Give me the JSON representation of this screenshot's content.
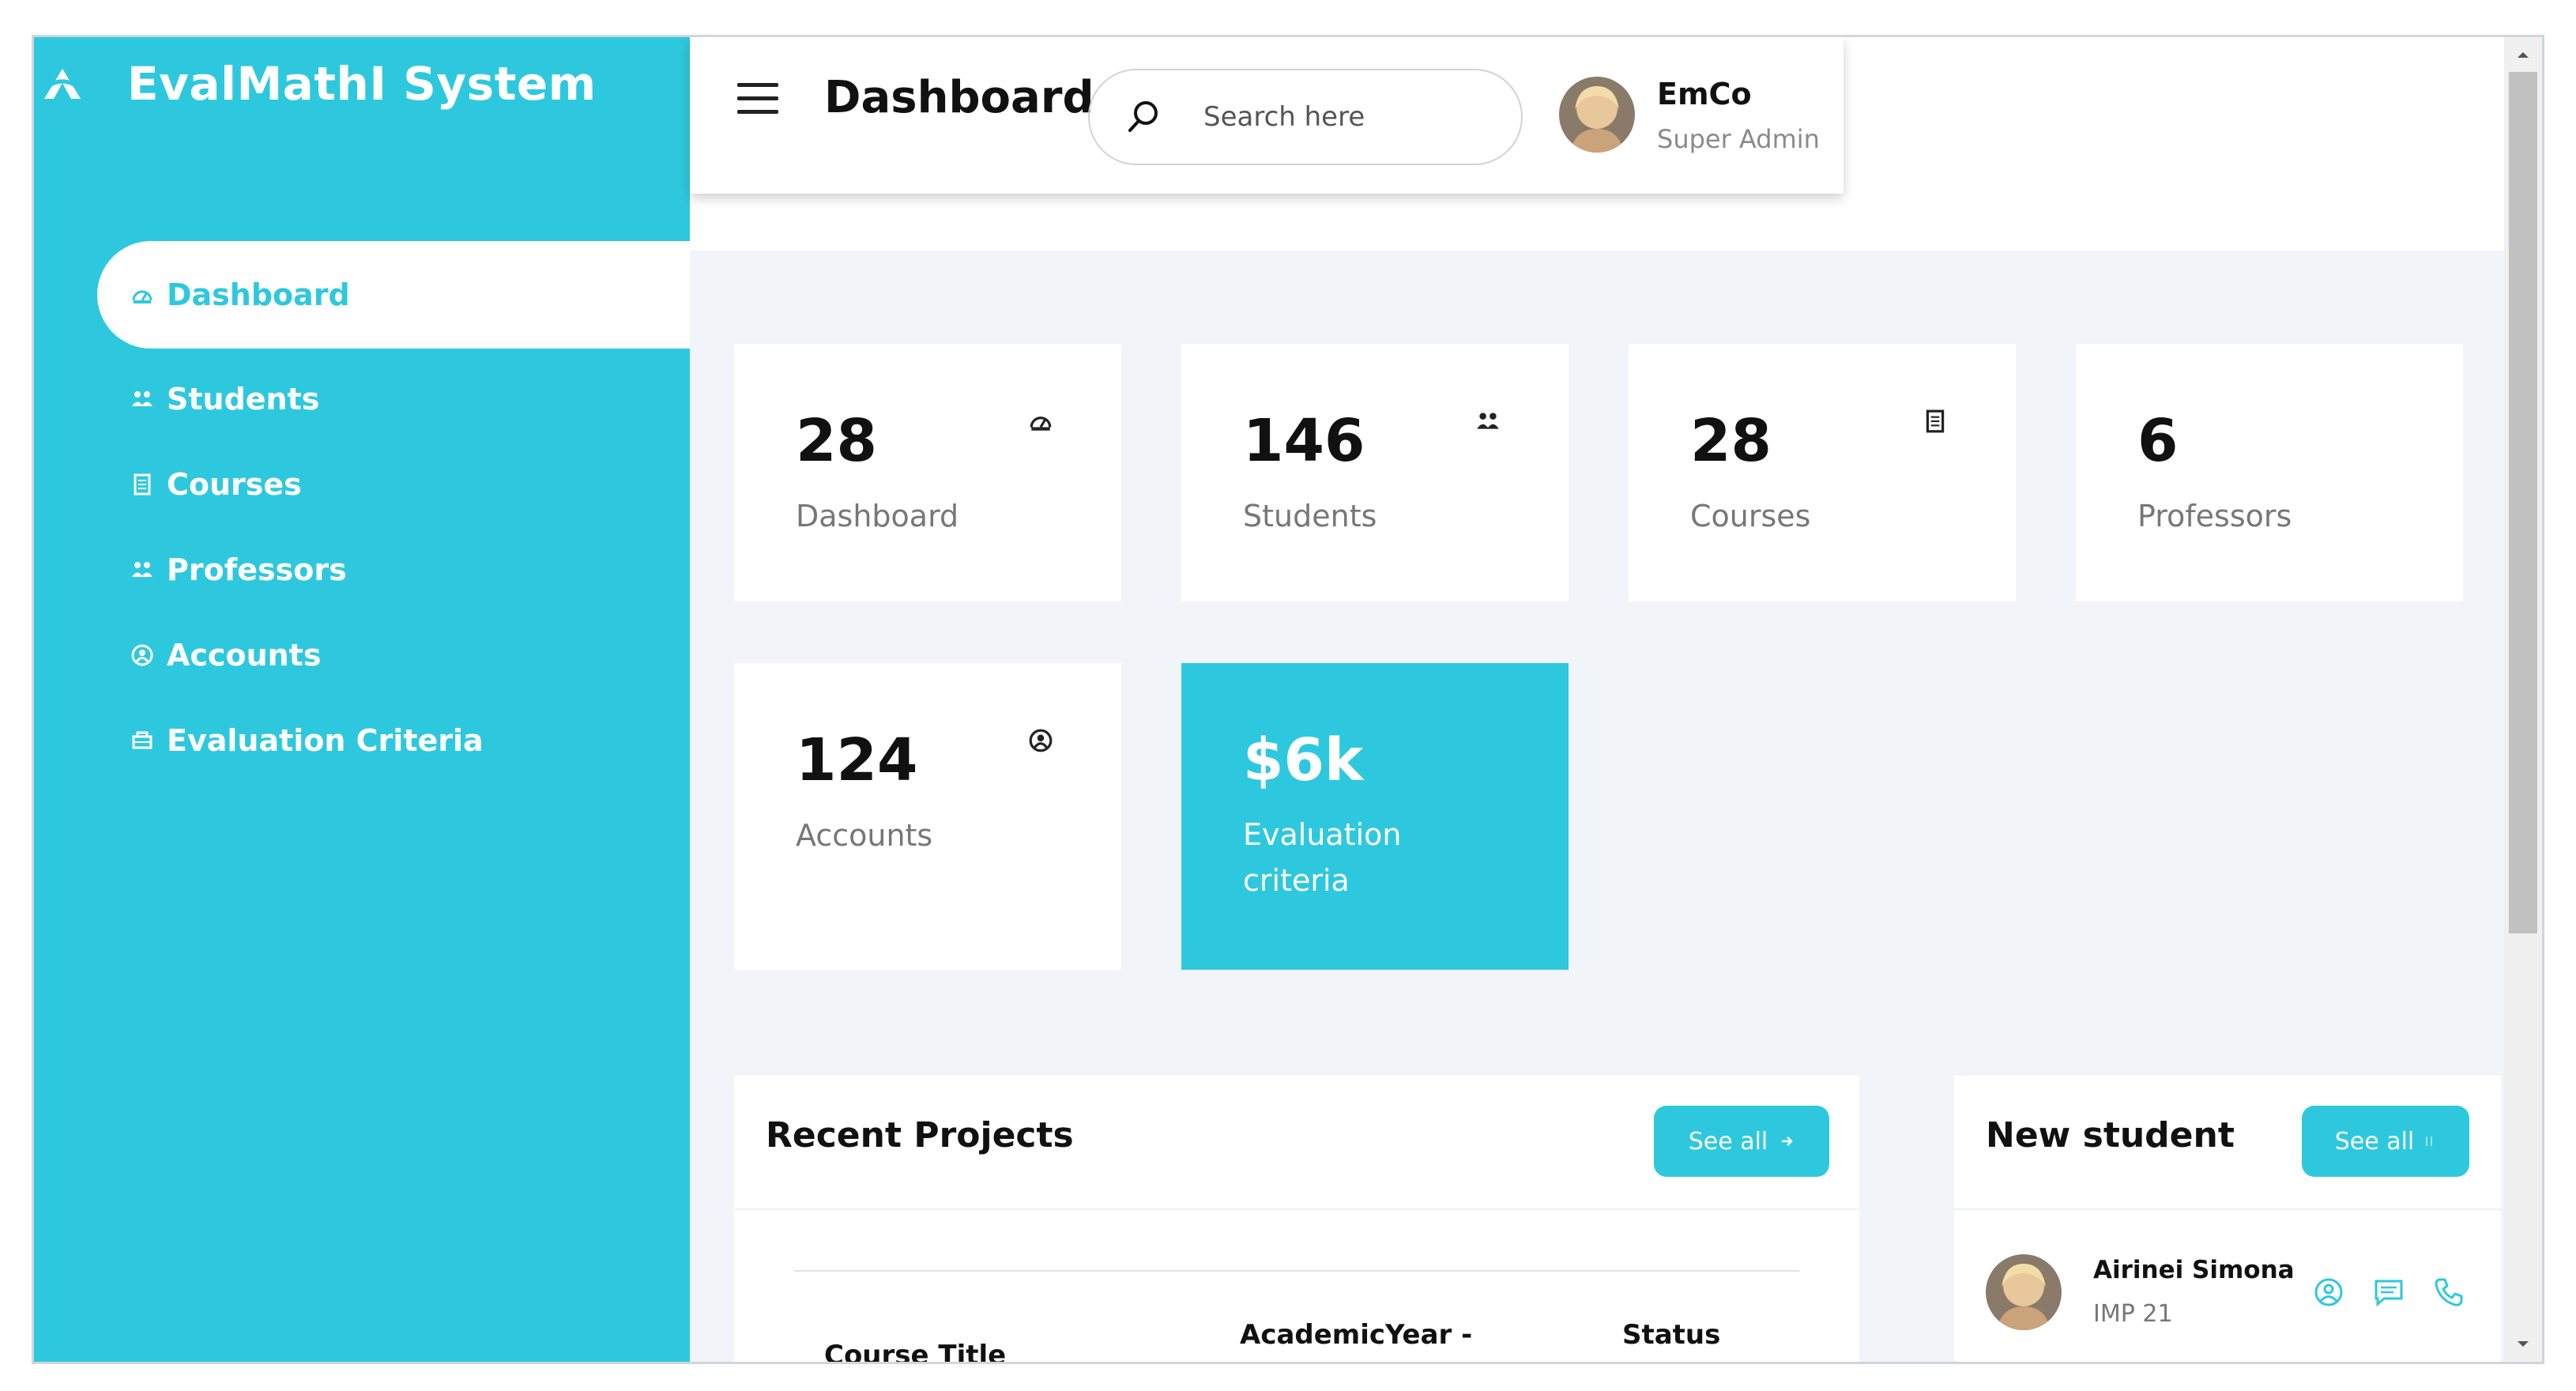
{
  "app": {
    "title": "EvalMathI System"
  },
  "sidebar": {
    "items": [
      {
        "label": "Dashboard",
        "icon": "dashboard-icon",
        "active": true
      },
      {
        "label": "Students",
        "icon": "students-icon"
      },
      {
        "label": "Courses",
        "icon": "courses-icon"
      },
      {
        "label": "Professors",
        "icon": "professors-icon"
      },
      {
        "label": "Accounts",
        "icon": "accounts-icon"
      },
      {
        "label": "Evaluation Criteria",
        "icon": "evaluation-icon"
      }
    ]
  },
  "header": {
    "title": "Dashboard",
    "search_placeholder": "Search here",
    "user": {
      "name": "EmCo",
      "role": "Super Admin"
    }
  },
  "stats": [
    {
      "value": "28",
      "label": "Dashboard"
    },
    {
      "value": "146",
      "label": "Students"
    },
    {
      "value": "28",
      "label": "Courses"
    },
    {
      "value": "6",
      "label": "Professors"
    },
    {
      "value": "124",
      "label": "Accounts"
    },
    {
      "value": "$6k",
      "label": "Evaluation criteria"
    }
  ],
  "recent_projects": {
    "title": "Recent Projects",
    "see_all": "See all",
    "columns": [
      "Course Title",
      "AcademicYear - Lecturer",
      "Status"
    ]
  },
  "new_student": {
    "title": "New student",
    "see_all": "See all",
    "students": [
      {
        "name": "Airinei Simona",
        "group": "IMP 21"
      }
    ]
  },
  "colors": {
    "accent": "#2ec8de",
    "background": "#f1f4f8"
  }
}
